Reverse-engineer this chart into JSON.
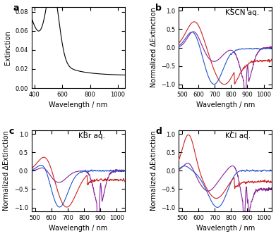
{
  "panel_a": {
    "xlabel": "Wavelength / nm",
    "ylabel": "Extinction",
    "label": "a",
    "xlim": [
      380,
      1050
    ],
    "ylim": [
      0.0,
      0.085
    ],
    "yticks": [
      0.0,
      0.02,
      0.04,
      0.06,
      0.08
    ],
    "xticks": [
      400,
      600,
      800,
      1000
    ]
  },
  "panel_b": {
    "xlabel": "Wavelength / nm",
    "ylabel": "Normalized ΔExtinction",
    "label": "b",
    "title": "KSCN aq.",
    "xlim": [
      480,
      1050
    ],
    "ylim": [
      -1.1,
      1.1
    ],
    "yticks": [
      -1.0,
      -0.5,
      0.0,
      0.5,
      1.0
    ],
    "xticks": [
      500,
      600,
      700,
      800,
      900,
      1000
    ]
  },
  "panel_c": {
    "xlabel": "Wavelength / nm",
    "ylabel": "Normalized ΔExtinction",
    "label": "c",
    "title": "KBr aq.",
    "xlim": [
      480,
      1050
    ],
    "ylim": [
      -1.1,
      1.1
    ],
    "yticks": [
      -1.0,
      -0.5,
      0.0,
      0.5,
      1.0
    ],
    "xticks": [
      500,
      600,
      700,
      800,
      900,
      1000
    ]
  },
  "panel_d": {
    "xlabel": "Wavelength / nm",
    "ylabel": "Normalized ΔExtinction",
    "label": "d",
    "title": "KCl aq.",
    "xlim": [
      480,
      1050
    ],
    "ylim": [
      -1.1,
      1.1
    ],
    "yticks": [
      -1.0,
      -0.5,
      0.0,
      0.5,
      1.0
    ],
    "xticks": [
      500,
      600,
      700,
      800,
      900,
      1000
    ]
  },
  "colors": {
    "blue": "#2255cc",
    "red": "#cc2222",
    "purple": "#882299"
  },
  "line_width": 0.8,
  "tick_fontsize": 6.0,
  "label_fontsize": 7.0,
  "title_fontsize": 7.5
}
